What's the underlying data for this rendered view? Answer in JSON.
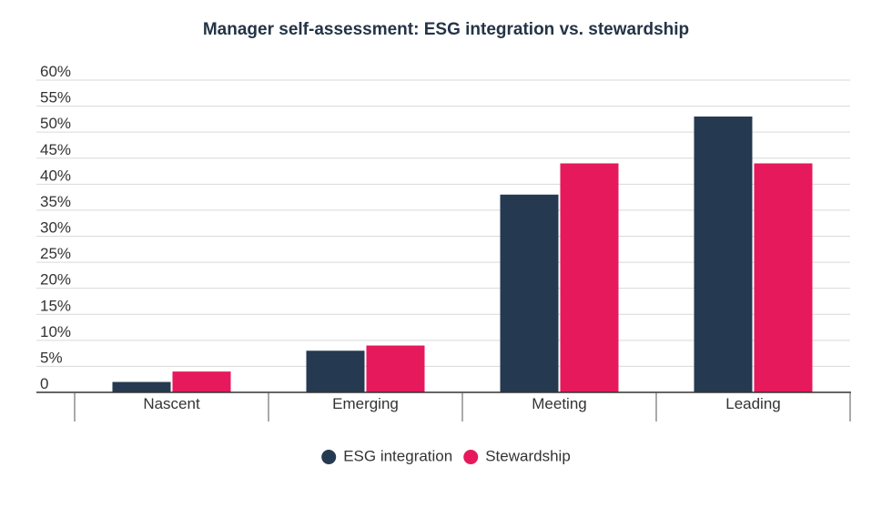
{
  "chart_data": {
    "type": "bar",
    "title": "Manager self-assessment: ESG integration vs. stewardship",
    "xlabel": "",
    "ylabel": "",
    "categories": [
      "Nascent",
      "Emerging",
      "Meeting",
      "Leading"
    ],
    "series": [
      {
        "name": "ESG integration",
        "color": "#253a50",
        "values": [
          2,
          8,
          38,
          53
        ]
      },
      {
        "name": "Stewardship",
        "color": "#e6195c",
        "values": [
          4,
          9,
          44,
          44
        ]
      }
    ],
    "ylim": [
      0,
      60
    ],
    "yticks": [
      "0",
      "5%",
      "10%",
      "15%",
      "20%",
      "25%",
      "30%",
      "35%",
      "40%",
      "45%",
      "50%",
      "55%",
      "60%"
    ],
    "ytick_values": [
      0,
      5,
      10,
      15,
      20,
      25,
      30,
      35,
      40,
      45,
      50,
      55,
      60
    ],
    "grid": true,
    "legend_position": "bottom"
  }
}
